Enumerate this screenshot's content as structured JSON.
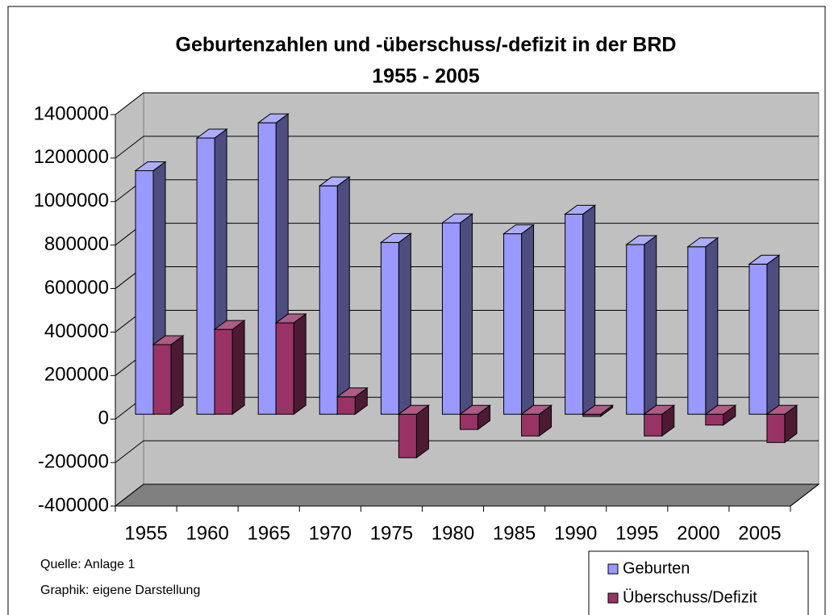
{
  "chart_data": {
    "type": "bar3d",
    "title": "Geburtenzahlen und -überschuss/-defizit in der BRD",
    "subtitle": "1955 - 2005",
    "categories": [
      "1955",
      "1960",
      "1965",
      "1970",
      "1975",
      "1980",
      "1985",
      "1990",
      "1995",
      "2000",
      "2005"
    ],
    "series": [
      {
        "name": "Geburten",
        "color": "#9999ff",
        "values": [
          1120000,
          1270000,
          1340000,
          1050000,
          790000,
          880000,
          830000,
          920000,
          780000,
          770000,
          690000
        ]
      },
      {
        "name": "Überschuss/Defizit",
        "color": "#993366",
        "values": [
          320000,
          390000,
          420000,
          80000,
          -200000,
          -70000,
          -100000,
          -10000,
          -100000,
          -50000,
          -130000
        ]
      }
    ],
    "ylim": [
      -400000,
      1400000
    ],
    "yticks": [
      -400000,
      -200000,
      0,
      200000,
      400000,
      600000,
      800000,
      1000000,
      1200000,
      1400000
    ],
    "grid": true,
    "legend": "bottom-right",
    "notes": [
      "Quelle: Anlage 1",
      "Graphik: eigene Darstellung"
    ]
  }
}
